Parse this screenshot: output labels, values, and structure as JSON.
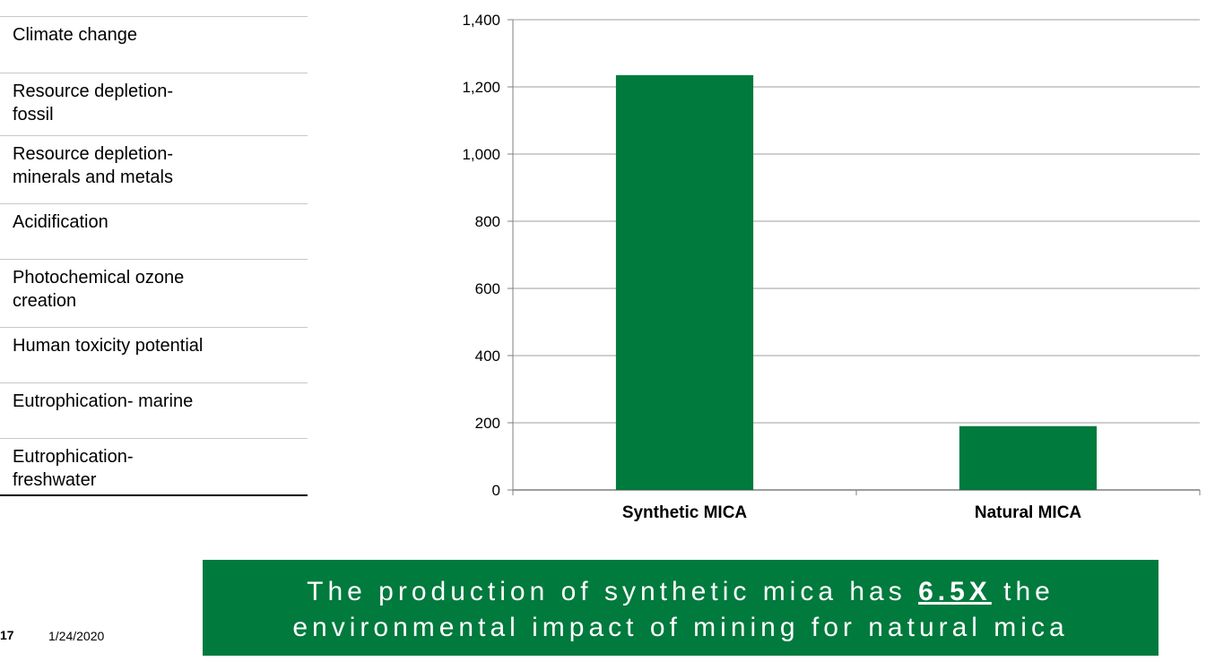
{
  "categories_list": [
    {
      "line1": "Climate change",
      "line2": ""
    },
    {
      "line1": "Resource depletion-",
      "line2": "fossil"
    },
    {
      "line1": "Resource depletion-",
      "line2": "minerals and metals"
    },
    {
      "line1": "Acidification",
      "line2": ""
    },
    {
      "line1": "Photochemical ozone",
      "line2": "creation"
    },
    {
      "line1": "Human toxicity potential",
      "line2": ""
    },
    {
      "line1": "Eutrophication- marine",
      "line2": ""
    },
    {
      "line1": "Eutrophication-",
      "line2": "freshwater"
    }
  ],
  "chart_data": {
    "type": "bar",
    "categories": [
      "Synthetic MICA",
      "Natural MICA"
    ],
    "values": [
      1235,
      190
    ],
    "ylim": [
      0,
      1400
    ],
    "yticks": [
      0,
      200,
      400,
      600,
      800,
      1000,
      1200,
      1400
    ],
    "ytick_labels": [
      "0",
      "200",
      "400",
      "600",
      "800",
      "1,000",
      "1,200",
      "1,400"
    ],
    "grid": true,
    "bar_color": "#007a3d",
    "grid_color": "#bfbfbf"
  },
  "banner": {
    "line1_prefix": "The production of synthetic mica has ",
    "line1_emphasis": "6.5X",
    "line1_suffix": " the",
    "line2": "environmental impact of mining for natural mica",
    "color": "#007a3d"
  },
  "footer": {
    "slide_number": "17",
    "date": "1/24/2020"
  }
}
